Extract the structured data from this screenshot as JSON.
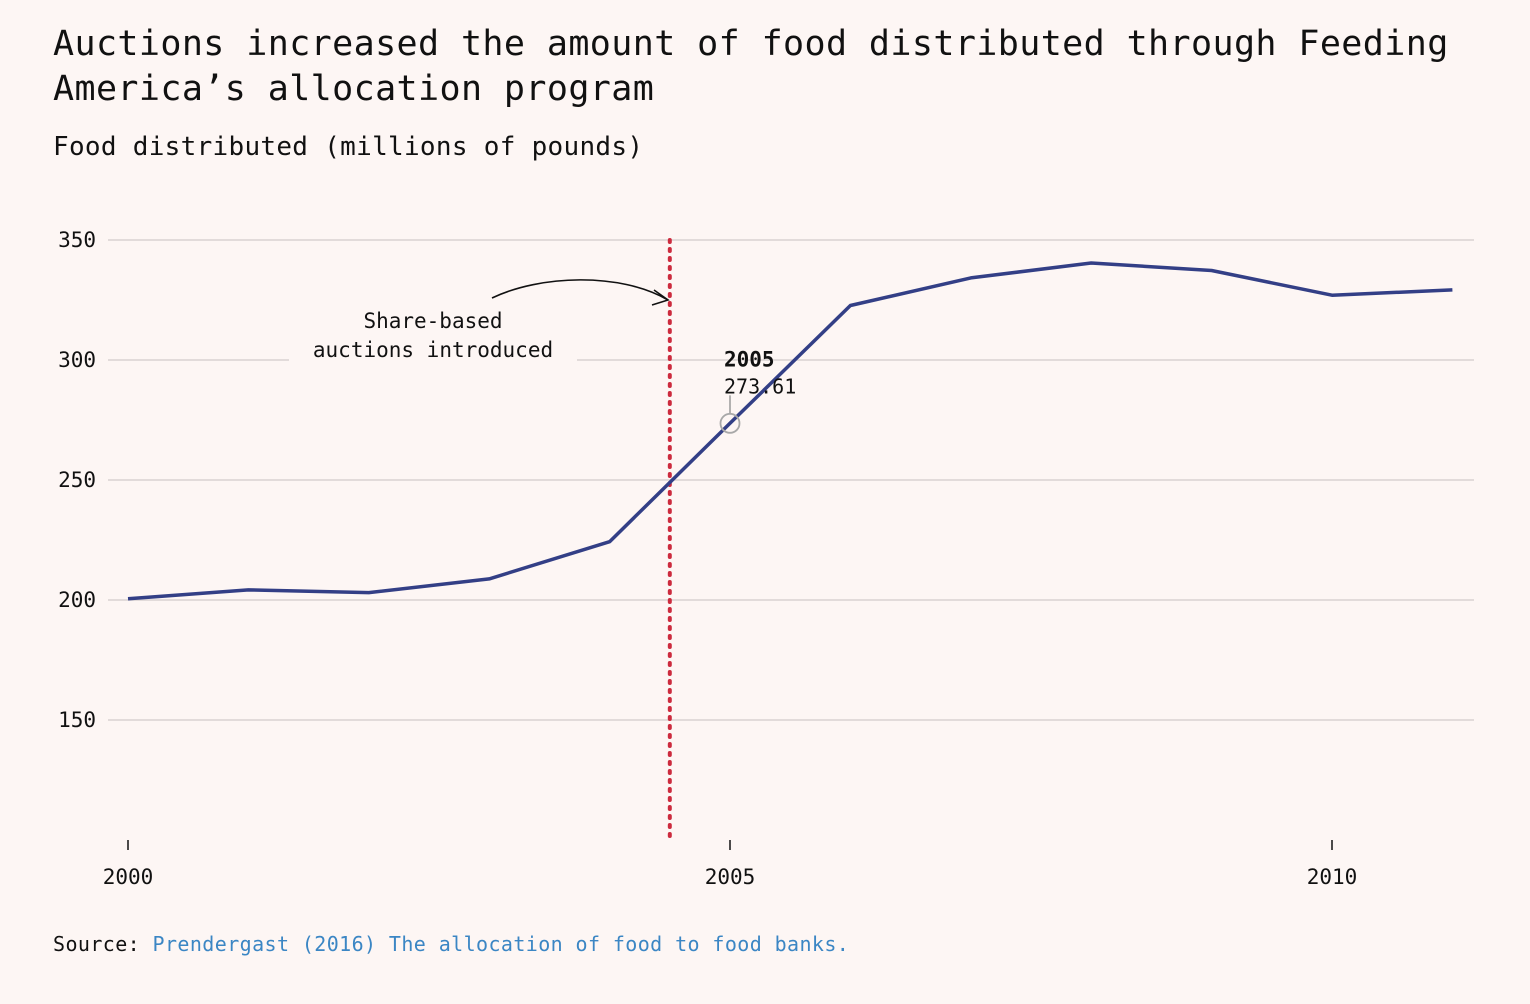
{
  "chart_data": {
    "type": "line",
    "title": "Auctions increased the amount of food distributed through Feeding America’s allocation program",
    "subtitle": "Food distributed (millions of pounds)",
    "x": [
      2000,
      2001,
      2002,
      2003,
      2004,
      2005,
      2006,
      2007,
      2008,
      2009,
      2010,
      2011
    ],
    "series": [
      {
        "values": [
          200.5,
          204.2,
          203.1,
          208.8,
          224.3,
          273.61,
          322.7,
          334.2,
          340.4,
          337.3,
          327.0,
          329.2
        ]
      }
    ],
    "xlim": [
      2000,
      2011.2
    ],
    "ylim": [
      100,
      350
    ],
    "y_ticks": [
      "150",
      "200",
      "250",
      "300",
      "350"
    ],
    "x_ticks": [
      "2000",
      "2005",
      "2010"
    ],
    "grid": true,
    "line_color": "#333f86",
    "annotation": {
      "x": 2004.5,
      "line_color": "#cc2b3e",
      "text_line1": "Share-based",
      "text_line2": "auctions introduced"
    },
    "tooltip": {
      "year": "2005",
      "value": "273.61"
    }
  },
  "source": {
    "label": "Source:",
    "link_text": "Prendergast (2016) The allocation of food to food banks."
  }
}
